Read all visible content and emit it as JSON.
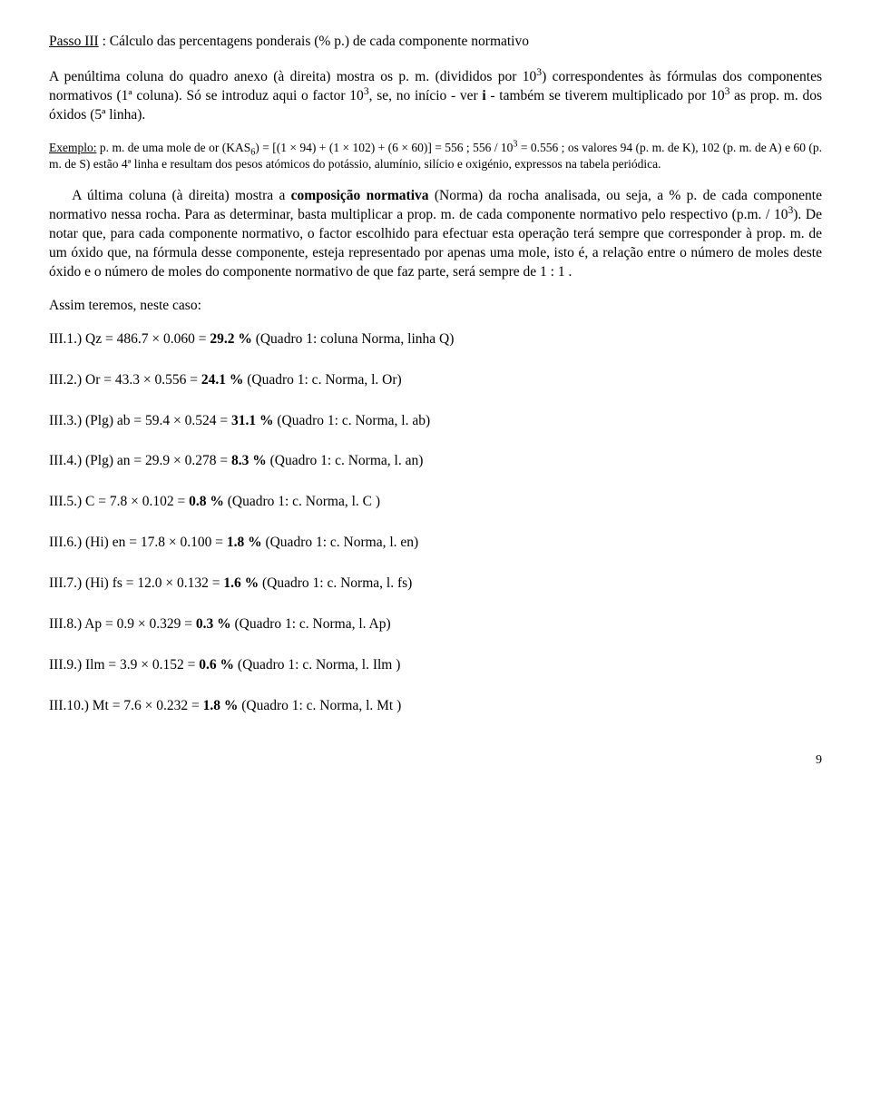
{
  "heading": {
    "label": "Passo III",
    "rest": " : Cálculo das percentagens ponderais (% p.) de cada componente normativo"
  },
  "para1a": "A penúltima coluna do quadro anexo (à direita) mostra os p. m. (divididos por 10",
  "para1b": ") correspondentes às fórmulas dos componentes normativos (1ª coluna). Só se introduz aqui o factor 10",
  "para1c": ", se, no início - ver ",
  "para1c_bold": "i",
  "para1d": " - também se tiverem multiplicado por 10",
  "para1e": " as prop. m. dos óxidos (5ª linha).",
  "exemplo_label": "Exemplo:",
  "exemplo_a": " p. m. de uma mole de or (KAS",
  "exemplo_b": ") = [(1 × 94) + (1 × 102) + (6 × 60)] = 556 ;  556 / 10",
  "exemplo_c": " = 0.556 ; os valores 94 (p. m. de K), 102 (p. m. de A) e 60 (p. m. de S) estão 4ª linha e resultam dos pesos atómicos do potássio, alumínio, silício e oxigénio, expressos na tabela periódica.",
  "para2a": "A última coluna (à direita) mostra a ",
  "para2b_bold": "composição normativa",
  "para2c": " (Norma) da rocha analisada, ou seja, a % p. de cada componente normativo nessa rocha. Para as determinar, basta multiplicar a prop. m. de cada componente normativo pelo respectivo (p.m. / 10",
  "para2d": "). De notar que, para cada componente normativo, o factor escolhido para efectuar esta operação terá sempre que corresponder à prop. m. de um óxido que, na fórmula desse componente, esteja representado por apenas uma mole, isto é, a relação entre o número de moles deste óxido  e o número de moles do componente normativo de que faz parte, será sempre de  1 : 1 .",
  "assim": "Assim teremos, neste caso:",
  "items": [
    {
      "pre": "III.1.)  Qz = 486.7 × 0.060 = ",
      "val": "29.2 %",
      "post": "   (Quadro 1: coluna Norma, linha Q)"
    },
    {
      "pre": "III.2.)  Or  = 43.3 × 0.556 = ",
      "val": "24.1 %",
      "post": "   (Quadro 1: c. Norma, l. Or)"
    },
    {
      "pre": "III.3.)  (Plg) ab = 59.4 × 0.524 = ",
      "val": "31.1 %",
      "post": "   (Quadro 1: c. Norma, l. ab)"
    },
    {
      "pre": "III.4.)  (Plg) an = 29.9 × 0.278 = ",
      "val": "8.3 %",
      "post": "   (Quadro 1: c. Norma, l. an)"
    },
    {
      "pre": "III.5.)  C = 7.8 × 0.102 = ",
      "val": "0.8 %",
      "post": "   (Quadro 1: c. Norma, l. C )"
    },
    {
      "pre": "III.6.)  (Hi) en = 17.8 × 0.100 = ",
      "val": "1.8 %",
      "post": "   (Quadro 1: c. Norma, l. en)"
    },
    {
      "pre": "III.7.)  (Hi) fs = 12.0 × 0.132 = ",
      "val": "1.6 %",
      "post": "   (Quadro 1: c. Norma, l. fs)"
    },
    {
      "pre": "III.8.)  Ap = 0.9 × 0.329 = ",
      "val": "0.3 %",
      "post": "   (Quadro 1: c. Norma, l. Ap)"
    },
    {
      "pre": "III.9.)  Ilm = 3.9 × 0.152 = ",
      "val": "0.6 %",
      "post": "   (Quadro 1: c. Norma, l. Ilm )"
    },
    {
      "pre": "III.10.)  Mt = 7.6 × 0.232 = ",
      "val": "1.8 %",
      "post": "   (Quadro 1: c. Norma, l. Mt )"
    }
  ],
  "pagenum": "9"
}
